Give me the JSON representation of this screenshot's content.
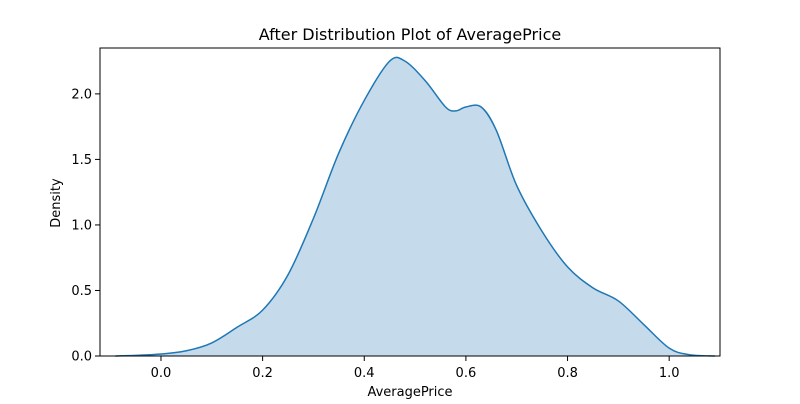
{
  "chart_data": {
    "type": "area",
    "title": "After Distribution Plot of AveragePrice",
    "xlabel": "AveragePrice",
    "ylabel": "Density",
    "xlim": [
      -0.12,
      1.1
    ],
    "ylim": [
      0,
      2.35
    ],
    "xticks": [
      0.0,
      0.2,
      0.4,
      0.6,
      0.8,
      1.0
    ],
    "xtick_labels": [
      "0.0",
      "0.2",
      "0.4",
      "0.6",
      "0.8",
      "1.0"
    ],
    "yticks": [
      0.0,
      0.5,
      1.0,
      1.5,
      2.0
    ],
    "ytick_labels": [
      "0.0",
      "0.5",
      "1.0",
      "1.5",
      "2.0"
    ],
    "grid": false,
    "series": [
      {
        "line_color": "#1f77b4",
        "fill_color": "#c5dbec",
        "x": [
          -0.09,
          -0.05,
          0.0,
          0.05,
          0.1,
          0.15,
          0.2,
          0.25,
          0.3,
          0.35,
          0.4,
          0.45,
          0.48,
          0.52,
          0.56,
          0.58,
          0.6,
          0.63,
          0.66,
          0.7,
          0.75,
          0.8,
          0.85,
          0.9,
          0.95,
          1.0,
          1.04,
          1.09
        ],
        "y": [
          0.0,
          0.005,
          0.015,
          0.04,
          0.1,
          0.22,
          0.35,
          0.62,
          1.05,
          1.55,
          1.95,
          2.25,
          2.25,
          2.1,
          1.9,
          1.87,
          1.9,
          1.9,
          1.72,
          1.3,
          0.95,
          0.68,
          0.52,
          0.42,
          0.24,
          0.06,
          0.01,
          0.0
        ]
      }
    ]
  }
}
